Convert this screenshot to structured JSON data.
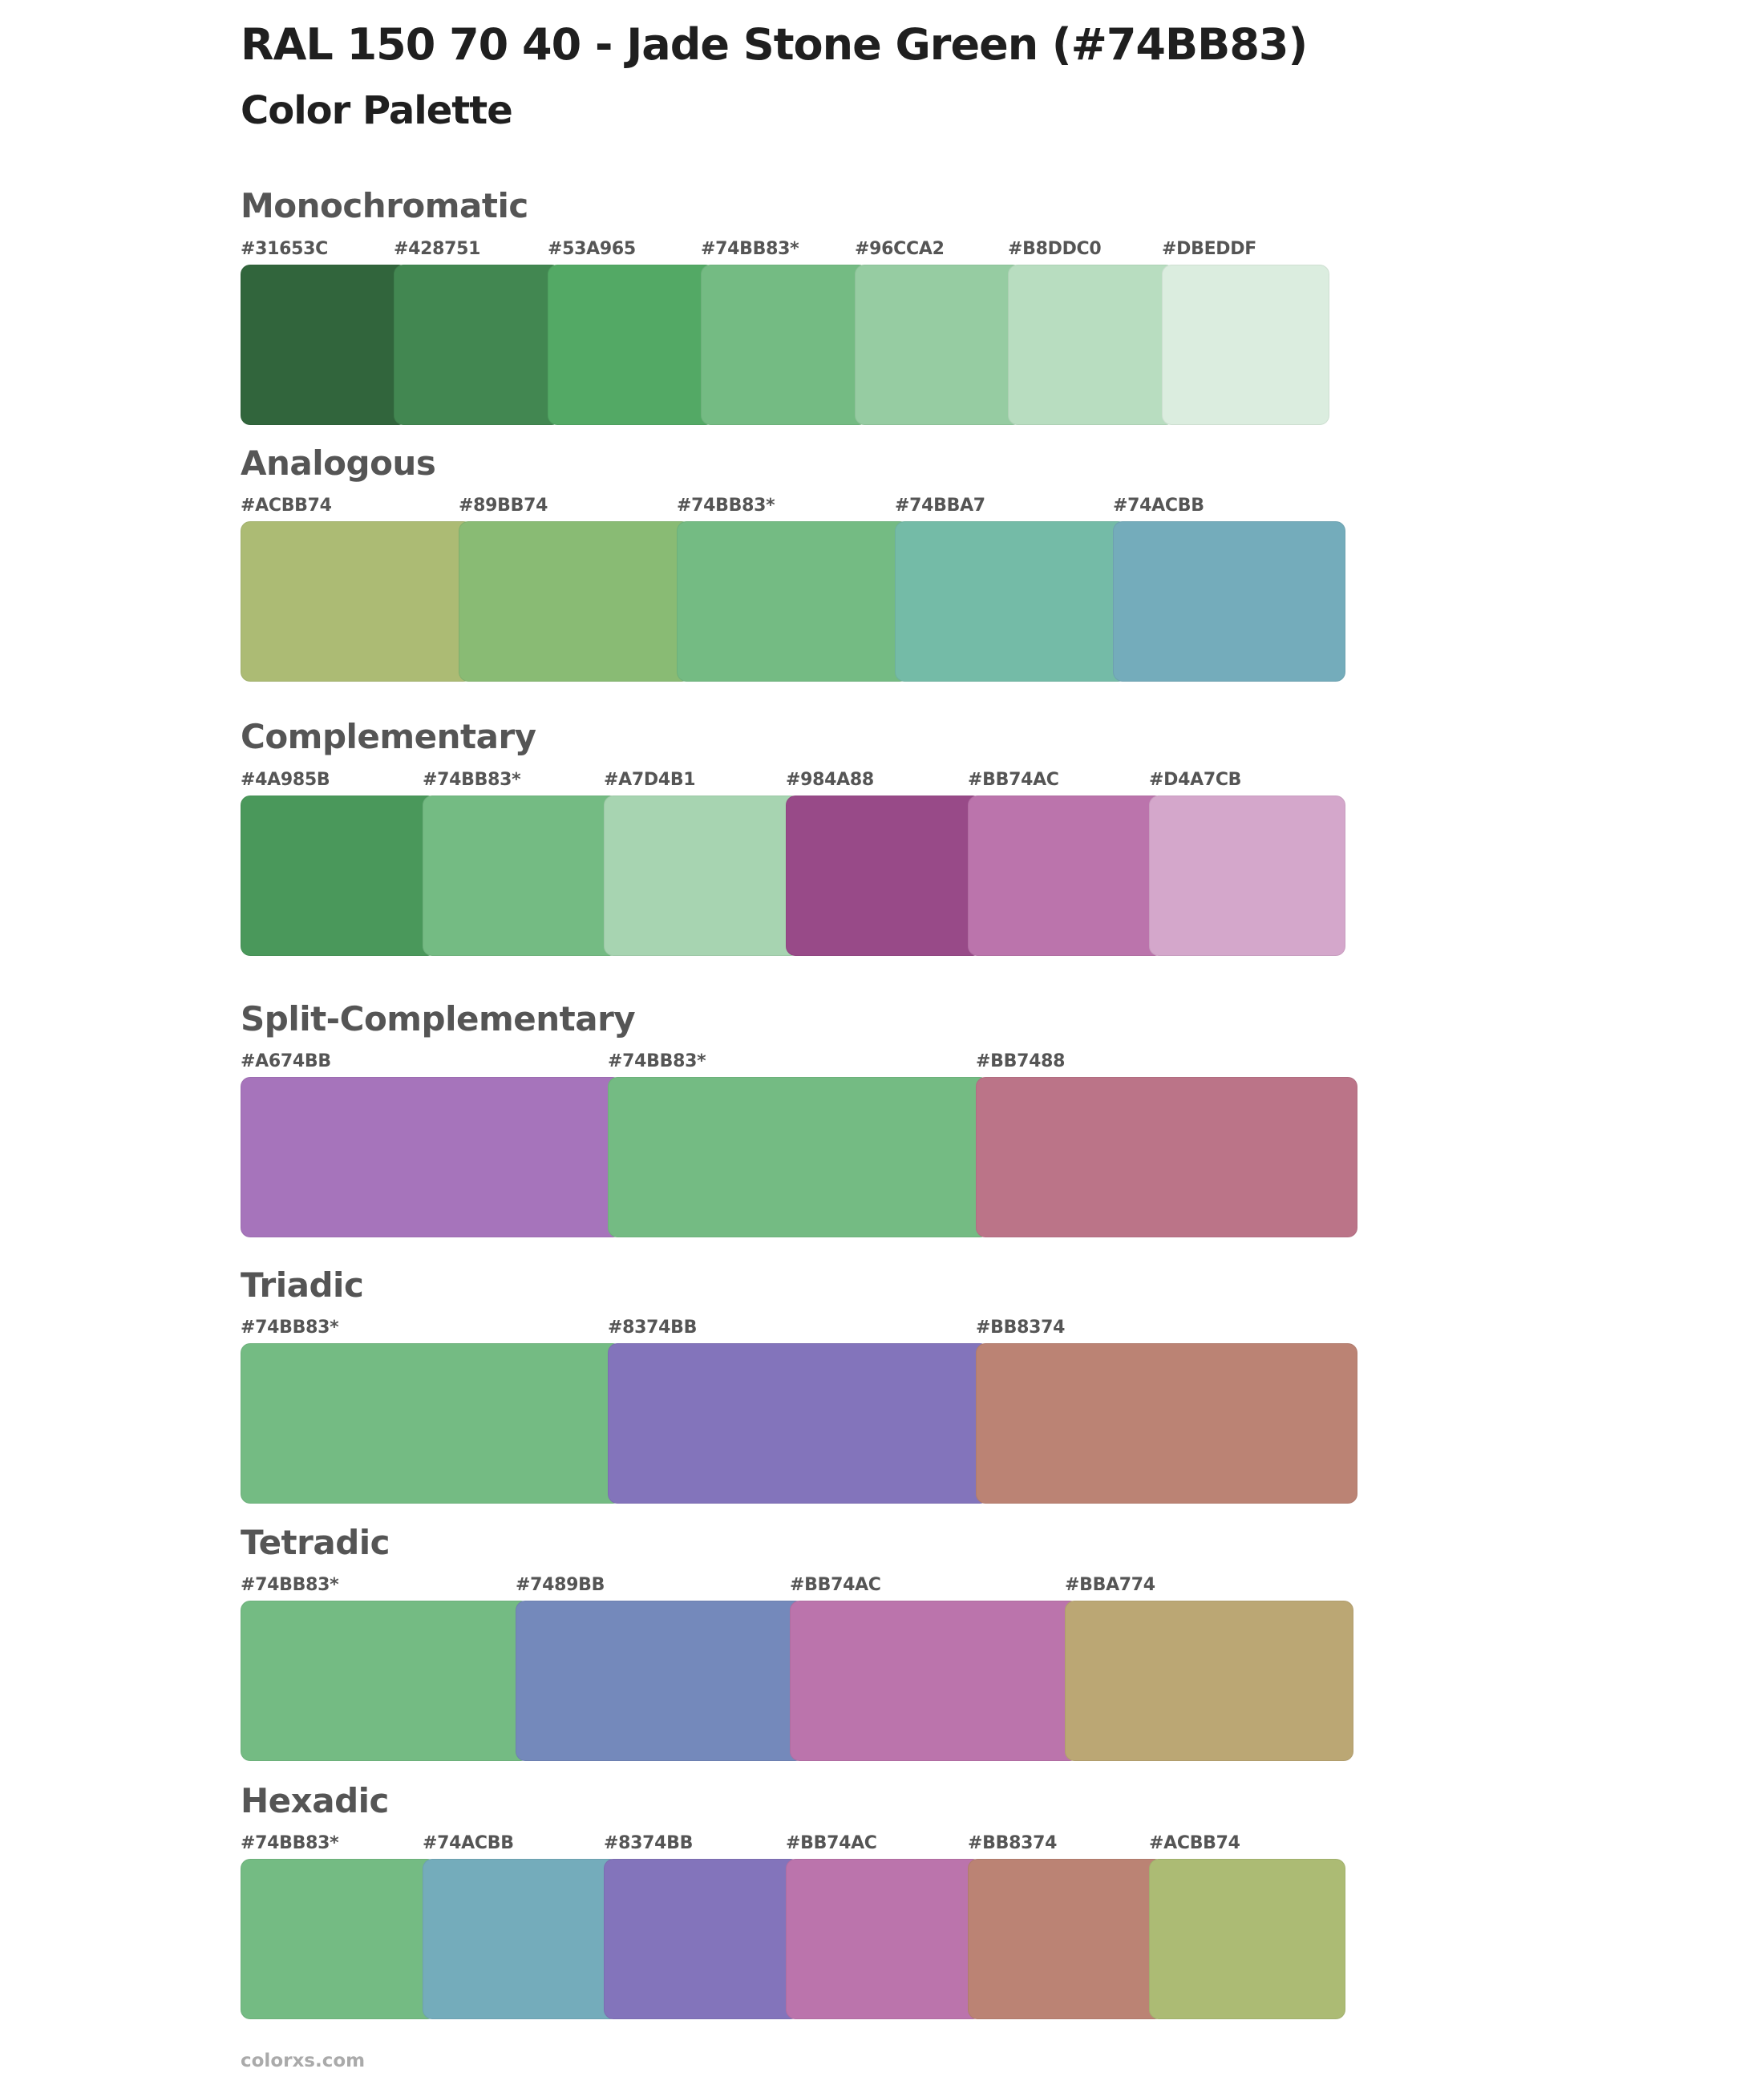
{
  "title": "RAL 150 70 40 - Jade Stone Green (#74BB83)",
  "subtitle": "Color Palette",
  "footer": "colorxs.com",
  "sections": [
    {
      "name": "Monochromatic",
      "swatches": [
        {
          "label": "#31653C",
          "color": "#31653C"
        },
        {
          "label": "#428751",
          "color": "#428751"
        },
        {
          "label": "#53A965",
          "color": "#53A965"
        },
        {
          "label": "#74BB83*",
          "color": "#74BB83"
        },
        {
          "label": "#96CCA2",
          "color": "#96CCA2"
        },
        {
          "label": "#B8DDC0",
          "color": "#B8DDC0"
        },
        {
          "label": "#DBEDDF",
          "color": "#DBEDDF"
        }
      ]
    },
    {
      "name": "Analogous",
      "swatches": [
        {
          "label": "#ACBB74",
          "color": "#ACBB74"
        },
        {
          "label": "#89BB74",
          "color": "#89BB74"
        },
        {
          "label": "#74BB83*",
          "color": "#74BB83"
        },
        {
          "label": "#74BBA7",
          "color": "#74BBA7"
        },
        {
          "label": "#74ACBB",
          "color": "#74ACBB"
        }
      ]
    },
    {
      "name": "Complementary",
      "swatches": [
        {
          "label": "#4A985B",
          "color": "#4A985B"
        },
        {
          "label": "#74BB83*",
          "color": "#74BB83"
        },
        {
          "label": "#A7D4B1",
          "color": "#A7D4B1"
        },
        {
          "label": "#984A88",
          "color": "#984A88"
        },
        {
          "label": "#BB74AC",
          "color": "#BB74AC"
        },
        {
          "label": "#D4A7CB",
          "color": "#D4A7CB"
        }
      ]
    },
    {
      "name": "Split-Complementary",
      "swatches": [
        {
          "label": "#A674BB",
          "color": "#A674BB"
        },
        {
          "label": "#74BB83*",
          "color": "#74BB83"
        },
        {
          "label": "#BB7488",
          "color": "#BB7488"
        }
      ]
    },
    {
      "name": "Triadic",
      "swatches": [
        {
          "label": "#74BB83*",
          "color": "#74BB83"
        },
        {
          "label": "#8374BB",
          "color": "#8374BB"
        },
        {
          "label": "#BB8374",
          "color": "#BB8374"
        }
      ]
    },
    {
      "name": "Tetradic",
      "swatches": [
        {
          "label": "#74BB83*",
          "color": "#74BB83"
        },
        {
          "label": "#7489BB",
          "color": "#7489BB"
        },
        {
          "label": "#BB74AC",
          "color": "#BB74AC"
        },
        {
          "label": "#BBA774",
          "color": "#BBA774"
        }
      ]
    },
    {
      "name": "Hexadic",
      "swatches": [
        {
          "label": "#74BB83*",
          "color": "#74BB83"
        },
        {
          "label": "#74ACBB",
          "color": "#74ACBB"
        },
        {
          "label": "#8374BB",
          "color": "#8374BB"
        },
        {
          "label": "#BB74AC",
          "color": "#BB74AC"
        },
        {
          "label": "#BB8374",
          "color": "#BB8374"
        },
        {
          "label": "#ACBB74",
          "color": "#ACBB74"
        }
      ]
    }
  ]
}
